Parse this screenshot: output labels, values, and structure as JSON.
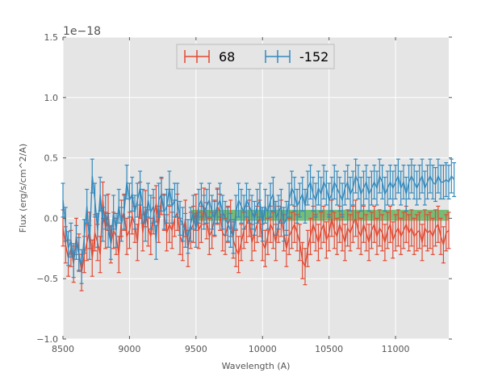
{
  "chart_data": {
    "type": "line",
    "title": "",
    "xlabel": "Wavelength (A)",
    "ylabel": "Flux (erg/s/cm^2/A)",
    "y_offset_label": "1e−18",
    "xlim": [
      8500,
      11400
    ],
    "ylim": [
      -1.0,
      1.5
    ],
    "x_ticks": [
      8500,
      9000,
      9500,
      10000,
      10500,
      11000
    ],
    "x_tick_labels": [
      "8500",
      "9000",
      "9500",
      "10000",
      "10500",
      "11000"
    ],
    "y_ticks": [
      -1.0,
      -0.5,
      0.0,
      0.5,
      1.0,
      1.5
    ],
    "y_tick_labels": [
      "−1.0",
      "−0.5",
      "0.0",
      "0.5",
      "1.0",
      "1.5"
    ],
    "grid": true,
    "legend_position": "top-center",
    "band": {
      "x_range": [
        9460,
        11400
      ],
      "y_range": [
        -0.02,
        0.07
      ],
      "color": "#2ca02c"
    },
    "series": [
      {
        "name": "68",
        "color": "#e24a33",
        "x_start": 8500,
        "x_step": 20,
        "values": [
          -0.08,
          -0.22,
          -0.33,
          -0.25,
          -0.38,
          -0.15,
          -0.28,
          -0.45,
          -0.3,
          -0.2,
          -0.1,
          -0.33,
          -0.12,
          -0.2,
          -0.3,
          0.15,
          -0.1,
          0.05,
          -0.22,
          -0.1,
          -0.15,
          -0.3,
          0.0,
          0.05,
          -0.15,
          -0.1,
          0.02,
          -0.05,
          -0.2,
          0.15,
          -0.12,
          0.08,
          -0.08,
          -0.15,
          0.02,
          0.12,
          -0.05,
          0.18,
          0.05,
          -0.12,
          -0.05,
          -0.1,
          0.0,
          0.05,
          -0.15,
          -0.2,
          0.0,
          -0.25,
          -0.1,
          -0.05,
          0.05,
          -0.1,
          -0.05,
          0.1,
          -0.02,
          -0.15,
          -0.1,
          0.0,
          0.1,
          0.05,
          -0.12,
          -0.15,
          -0.05,
          0.0,
          -0.18,
          -0.25,
          -0.3,
          -0.2,
          -0.1,
          -0.05,
          0.0,
          -0.2,
          -0.12,
          -0.05,
          0.0,
          -0.2,
          -0.25,
          -0.15,
          -0.05,
          -0.1,
          -0.2,
          -0.05,
          0.0,
          -0.12,
          -0.25,
          -0.15,
          -0.1,
          -0.05,
          -0.12,
          -0.2,
          -0.35,
          -0.4,
          -0.25,
          -0.15,
          -0.05,
          -0.12,
          -0.2,
          -0.1,
          -0.05,
          -0.18,
          -0.12,
          0.0,
          -0.1,
          -0.15,
          -0.05,
          -0.12,
          -0.2,
          -0.08,
          -0.12,
          -0.05,
          0.0,
          -0.1,
          -0.15,
          -0.05,
          -0.12,
          -0.2,
          -0.1,
          -0.05,
          -0.15,
          -0.08,
          -0.12,
          -0.2,
          -0.1,
          -0.05,
          -0.18,
          -0.12,
          -0.08,
          -0.15,
          -0.1,
          -0.05,
          -0.12,
          -0.08,
          -0.15,
          -0.12,
          -0.1,
          -0.2,
          -0.08,
          -0.12,
          -0.1,
          -0.15,
          -0.08,
          -0.05,
          -0.15,
          -0.22,
          -0.12,
          -0.1
        ],
        "error": 0.15
      },
      {
        "name": "-152",
        "color": "#348abd",
        "x_start": 8500,
        "x_step": 20,
        "values": [
          0.15,
          -0.05,
          -0.25,
          -0.18,
          -0.35,
          -0.2,
          -0.3,
          -0.4,
          -0.15,
          0.1,
          -0.2,
          0.35,
          0.15,
          -0.1,
          0.2,
          -0.05,
          0.05,
          -0.1,
          -0.2,
          0.05,
          -0.1,
          0.1,
          -0.05,
          0.05,
          0.3,
          0.15,
          0.2,
          0.05,
          0.15,
          0.25,
          0.1,
          -0.05,
          0.15,
          0.05,
          0.1,
          -0.2,
          0.15,
          0.2,
          0.05,
          0.1,
          0.25,
          0.1,
          0.15,
          0.15,
          0.0,
          -0.05,
          -0.1,
          -0.15,
          -0.05,
          0.05,
          -0.1,
          0.1,
          0.15,
          0.05,
          0.1,
          0.15,
          0.05,
          0.0,
          0.1,
          0.15,
          0.05,
          0.0,
          -0.05,
          -0.1,
          -0.15,
          0.05,
          0.15,
          0.1,
          0.05,
          0.15,
          0.1,
          0.05,
          0.0,
          0.1,
          0.15,
          -0.05,
          0.1,
          0.05,
          0.15,
          0.2,
          0.0,
          0.05,
          0.1,
          -0.05,
          0.0,
          0.15,
          0.25,
          0.2,
          0.1,
          0.15,
          0.2,
          0.1,
          0.25,
          0.3,
          0.2,
          0.15,
          0.25,
          0.2,
          0.3,
          0.25,
          0.15,
          0.2,
          0.3,
          0.25,
          0.2,
          0.15,
          0.25,
          0.3,
          0.2,
          0.25,
          0.35,
          0.3,
          0.2,
          0.25,
          0.3,
          0.2,
          0.25,
          0.3,
          0.25,
          0.35,
          0.3,
          0.2,
          0.25,
          0.3,
          0.25,
          0.3,
          0.35,
          0.25,
          0.3,
          0.2,
          0.3,
          0.35,
          0.3,
          0.25,
          0.3,
          0.35,
          0.25,
          0.3,
          0.35,
          0.3,
          0.28,
          0.35,
          0.3,
          0.3,
          0.32,
          0.3,
          0.35,
          0.32
        ],
        "error": 0.14
      }
    ]
  }
}
